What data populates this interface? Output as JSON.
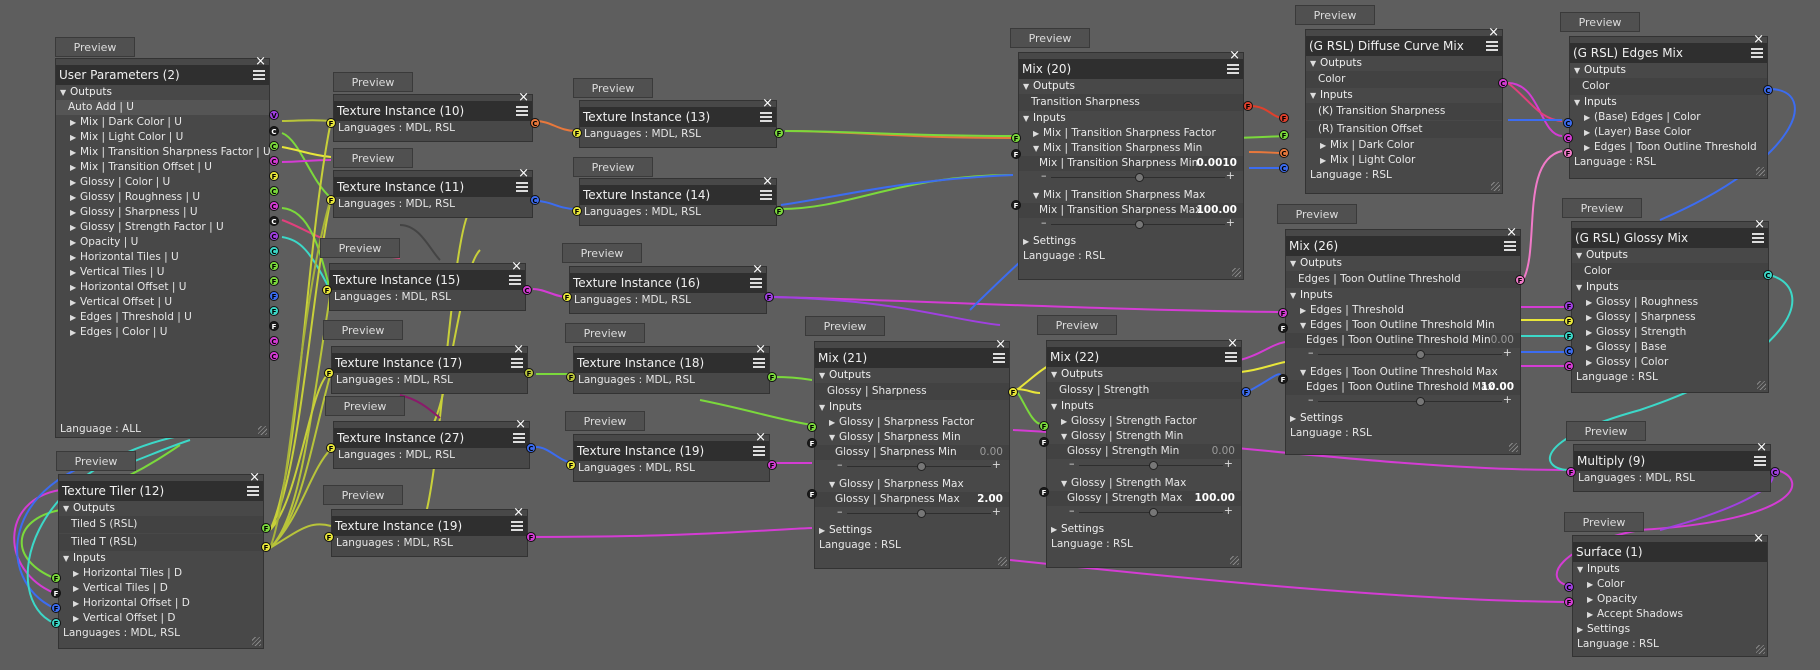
{
  "preview_label": "Preview",
  "common": {
    "outputs": "Outputs",
    "inputs": "Inputs",
    "settings": "Settings",
    "lang_mdl_rsl": "Languages : MDL, RSL",
    "lang_rsl": "Language : RSL",
    "lang_all": "Language : ALL"
  },
  "colors": {
    "green": "#7bd93c",
    "yellow": "#e8e63a",
    "magenta": "#d43cd4",
    "pink": "#f07ac8",
    "cyan": "#3cd8c8",
    "blue": "#3c6cf0",
    "red": "#e0402c",
    "orange": "#e8783c",
    "olive": "#b8c43a",
    "dark": "#1c1c1c",
    "violet": "#a040e0"
  },
  "user_params": {
    "title": "User Parameters (2)",
    "auto_add": "Auto Add  | U",
    "items": [
      "Mix | Dark Color  | U",
      "Mix | Light Color  | U",
      "Mix | Transition Sharpness Factor  | U",
      "Mix | Transition Offset  | U",
      "Glossy | Color  | U",
      "Glossy | Roughness  | U",
      "Glossy | Sharpness  | U",
      "Glossy | Strength Factor  | U",
      "Opacity  | U",
      "Horizontal Tiles  | U",
      "Vertical Tiles  | U",
      "Horizontal Offset  | U",
      "Vertical Offset  | U",
      "Edges | Threshold  | U",
      "Edges | Color  | U"
    ]
  },
  "texture_tiler": {
    "title": "Texture Tiler (12)",
    "outputs": [
      "Tiled S (RSL)",
      "Tiled T (RSL)"
    ],
    "inputs": [
      "Horizontal Tiles  | D",
      "Vertical Tiles  | D",
      "Horizontal Offset  | D",
      "Vertical Offset  | D"
    ]
  },
  "tex_nodes": {
    "t10": "Texture Instance (10)",
    "t11": "Texture Instance (11)",
    "t15": "Texture Instance (15)",
    "t17": "Texture Instance (17)",
    "t27": "Texture Instance (27)",
    "t19a": "Texture Instance (19)",
    "t13": "Texture Instance (13)",
    "t14": "Texture Instance (14)",
    "t16": "Texture Instance (16)",
    "t18": "Texture Instance (18)",
    "t19b": "Texture Instance (19)"
  },
  "mix20": {
    "title": "Mix (20)",
    "output": "Transition Sharpness",
    "in1": "Mix | Transition Sharpness Factor",
    "in2": "Mix | Transition Sharpness Min",
    "in2_field": "Mix | Transition Sharpness Min",
    "in2_value": "0.0010",
    "in3": "Mix | Transition Sharpness Max",
    "in3_field": "Mix | Transition Sharpness Max",
    "in3_value": "100.00"
  },
  "mix21": {
    "title": "Mix (21)",
    "output": "Glossy | Sharpness",
    "in1": "Glossy | Sharpness Factor",
    "in2": "Glossy | Sharpness Min",
    "in2_field": "Glossy | Sharpness Min",
    "in2_value": "0.00",
    "in3": "Glossy | Sharpness Max",
    "in3_field": "Glossy | Sharpness Max",
    "in3_value": "2.00"
  },
  "mix22": {
    "title": "Mix (22)",
    "output": "Glossy | Strength",
    "in1": "Glossy | Strength Factor",
    "in2": "Glossy | Strength Min",
    "in2_field": "Glossy | Strength Min",
    "in2_value": "0.00",
    "in3": "Glossy | Strength Max",
    "in3_field": "Glossy | Strength Max",
    "in3_value": "100.00"
  },
  "mix26": {
    "title": "Mix (26)",
    "output": "Edges | Toon Outline Threshold",
    "in1": "Edges | Threshold",
    "in2": "Edges | Toon Outline Threshold Min",
    "in2_field": "Edges | Toon Outline Threshold Min",
    "in2_value": "0.00",
    "in3": "Edges | Toon Outline Threshold Max",
    "in3_field": "Edges | Toon Outline Threshold Max",
    "in3_value": "10.00"
  },
  "diffuse": {
    "title": "(G RSL) Diffuse Curve Mix",
    "output": "Color",
    "in1": "(K) Transition Sharpness",
    "in2": "(R) Transition Offset",
    "in3": "Mix | Dark Color",
    "in4": "Mix | Light Color"
  },
  "edges": {
    "title": "(G RSL) Edges Mix",
    "output": "Color",
    "in1": "(Base) Edges | Color",
    "in2": "(Layer) Base Color",
    "in3": "Edges | Toon Outline Threshold"
  },
  "glossy": {
    "title": "(G RSL) Glossy Mix",
    "output": "Color",
    "in1": "Glossy | Roughness",
    "in2": "Glossy | Sharpness",
    "in3": "Glossy | Strength",
    "in4": "Glossy | Base",
    "in5": "Glossy | Color"
  },
  "multiply": {
    "title": "Multiply (9)"
  },
  "surface": {
    "title": "Surface (1)",
    "in1": "Color",
    "in2": "Opacity",
    "in3": "Accept Shadows"
  }
}
